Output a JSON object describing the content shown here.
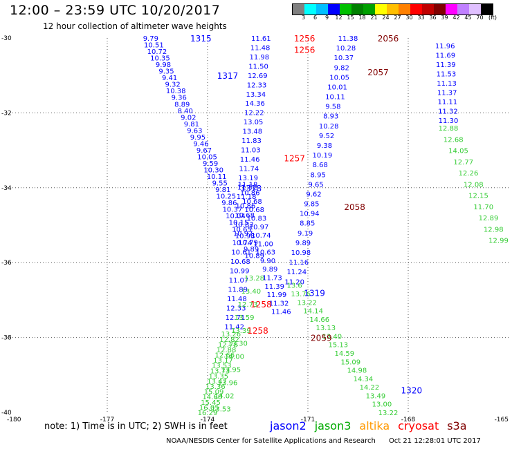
{
  "title": "12:00 – 23:59 UTC 10/20/2017",
  "subtitle": "12 hour collection of altimeter wave heights",
  "colorbar": {
    "unit_label": "(ft)",
    "ticks": [
      "3",
      "6",
      "9",
      "12",
      "15",
      "18",
      "21",
      "24",
      "27",
      "30",
      "33",
      "36",
      "39",
      "42",
      "45",
      "70"
    ],
    "colors": [
      "#808080",
      "#00ffff",
      "#00bfff",
      "#0000ff",
      "#00c000",
      "#008000",
      "#00a000",
      "#ffff00",
      "#ffbf00",
      "#ff8000",
      "#ff0000",
      "#c00000",
      "#800000",
      "#ff00ff",
      "#c080ff",
      "#e0c0ff",
      "#000000"
    ]
  },
  "chart_data": {
    "type": "scatter",
    "title": "12:00 – 23:59 UTC 10/20/2017",
    "subtitle": "12 hour collection of altimeter wave heights",
    "xlim": [
      -180,
      -165
    ],
    "ylim": [
      -40,
      -30
    ],
    "x_ticks": [
      "-180",
      "-177",
      "-174",
      "-171",
      "-168",
      "-165"
    ],
    "y_ticks": [
      "-30",
      "-32",
      "-34",
      "-36",
      "-38",
      "-40"
    ],
    "grid": true,
    "tracks": [
      {
        "satellite": "jason2",
        "color": "#0000ff",
        "start": [
          -175.7,
          -30.0
        ],
        "end": [
          -172.6,
          -35.8
        ],
        "values": [
          "9.79",
          "10.51",
          "10.72",
          "10.35",
          "9.98",
          "9.35",
          "9.41",
          "9.32",
          "10.38",
          "9.36",
          "8.89",
          "8.40",
          "9.02",
          "9.81",
          "9.63",
          "9.95",
          "9.46",
          "9.67",
          "10.05",
          "9.59",
          "10.30",
          "10.11",
          "9.55",
          "9.81",
          "10.25",
          "9.86",
          "10.37",
          "10.04",
          "10.15",
          "10.65",
          "10.98",
          "10.79",
          "9.89",
          "10.89"
        ]
      },
      {
        "satellite": "jason2",
        "color": "#0000ff",
        "start": [
          -172.8,
          -33.9
        ],
        "end": [
          -171.8,
          -37.3
        ],
        "values": [
          "11.18",
          "10.86",
          "10.68",
          "10.68",
          "10.83",
          "10.97",
          "10.74",
          "11.00",
          "10.63",
          "9.90",
          "9.89",
          "11.73",
          "11.39",
          "11.99",
          "11.32",
          "11.46"
        ]
      },
      {
        "satellite": "jason2",
        "color": "#0000ff",
        "start": [
          -172.4,
          -30.0
        ],
        "end": [
          -173.2,
          -37.7
        ],
        "values": [
          "11.61",
          "11.48",
          "11.98",
          "11.50",
          "12.69",
          "12.33",
          "13.34",
          "14.36",
          "12.22",
          "13.05",
          "13.48",
          "11.83",
          "11.03",
          "11.46",
          "11.74",
          "13.19",
          "11.52",
          "11.18",
          "10.86",
          "10.68",
          "10.83",
          "10.97",
          "10.74",
          "10.61",
          "10.68",
          "10.99",
          "11.07",
          "11.89",
          "11.48",
          "12.33",
          "12.71",
          "11.42"
        ]
      },
      {
        "satellite": "jason2",
        "color": "#0000ff",
        "start": [
          -169.8,
          -30.0
        ],
        "end": [
          -171.4,
          -36.5
        ],
        "values": [
          "11.38",
          "10.28",
          "10.37",
          "9.82",
          "10.05",
          "10.01",
          "10.11",
          "9.58",
          "8.93",
          "10.28",
          "9.52",
          "9.38",
          "10.19",
          "8.68",
          "8.95",
          "9.65",
          "9.62",
          "9.85",
          "10.94",
          "8.85",
          "9.19",
          "9.89",
          "10.98",
          "11.16",
          "11.24",
          "11.20"
        ]
      },
      {
        "satellite": "jason2",
        "color": "#0000ff",
        "start": [
          -166.9,
          -30.2
        ],
        "end": [
          -166.8,
          -32.2
        ],
        "values": [
          "11.96",
          "11.69",
          "11.39",
          "11.53",
          "11.13",
          "11.37",
          "11.11",
          "11.32",
          "11.30"
        ]
      },
      {
        "satellite": "jason3",
        "color": "#33cc33",
        "start": [
          -166.8,
          -32.4
        ],
        "end": [
          -165.3,
          -35.4
        ],
        "values": [
          "12.88",
          "12.68",
          "14.05",
          "12.77",
          "12.26",
          "12.08",
          "12.15",
          "11.70",
          "12.89",
          "12.98",
          "12.99"
        ]
      },
      {
        "satellite": "jason3",
        "color": "#33cc33",
        "start": [
          -173.3,
          -37.9
        ],
        "end": [
          -174.0,
          -40.0
        ],
        "values": [
          "13.26",
          "12.82",
          "12.78",
          "12.88",
          "12.66",
          "13.17",
          "13.53",
          "13.73",
          "13.35",
          "13.47",
          "13.36",
          "15.09",
          "14.60",
          "15.45",
          "16.05",
          "16.29"
        ]
      },
      {
        "satellite": "jason3",
        "color": "#33cc33",
        "start": [
          -172.6,
          -36.4
        ],
        "end": [
          -173.6,
          -39.9
        ],
        "values": [
          "13.28",
          "13.40",
          "12.73",
          "13.59",
          "13.39",
          "13.30",
          "14.00",
          "13.95",
          "13.96",
          "14.02",
          "13.53"
        ]
      },
      {
        "satellite": "jason3",
        "color": "#33cc33",
        "start": [
          -171.4,
          -36.6
        ],
        "end": [
          -168.6,
          -40.0
        ],
        "values": [
          "13.6",
          "13.76",
          "13.22",
          "14.14",
          "14.66",
          "13.13",
          "13.40",
          "15.13",
          "14.59",
          "15.09",
          "14.98",
          "14.34",
          "14.22",
          "13.49",
          "13.00",
          "13.22"
        ]
      }
    ],
    "pass_labels": [
      {
        "text": "1315",
        "color": "#0000ff",
        "x": -174.2,
        "y": -30.0
      },
      {
        "text": "1317",
        "color": "#0000ff",
        "x": -173.4,
        "y": -31.0
      },
      {
        "text": "1318",
        "color": "#0000ff",
        "x": -172.7,
        "y": -34.0
      },
      {
        "text": "1319",
        "color": "#0000ff",
        "x": -170.8,
        "y": -36.8
      },
      {
        "text": "1320",
        "color": "#0000ff",
        "x": -167.9,
        "y": -39.4
      },
      {
        "text": "1256",
        "color": "#ff0000",
        "x": -171.1,
        "y": -30.0
      },
      {
        "text": "1256",
        "color": "#ff0000",
        "x": -171.1,
        "y": -30.3
      },
      {
        "text": "1257",
        "color": "#ff0000",
        "x": -171.4,
        "y": -33.2
      },
      {
        "text": "1258",
        "color": "#ff0000",
        "x": -172.4,
        "y": -37.1
      },
      {
        "text": "1258",
        "color": "#ff0000",
        "x": -172.5,
        "y": -37.8
      },
      {
        "text": "2056",
        "color": "#800000",
        "x": -168.6,
        "y": -30.0
      },
      {
        "text": "2057",
        "color": "#800000",
        "x": -168.9,
        "y": -30.9
      },
      {
        "text": "2058",
        "color": "#800000",
        "x": -169.6,
        "y": -34.5
      },
      {
        "text": "2059",
        "color": "#800000",
        "x": -170.6,
        "y": -38.0
      }
    ]
  },
  "note": "note:  1) Time is in UTC;  2) SWH is in feet",
  "legend": [
    {
      "label": "jason2",
      "color": "#0000ff"
    },
    {
      "label": "jason3",
      "color": "#00aa00"
    },
    {
      "label": "altika",
      "color": "#ff9900"
    },
    {
      "label": "cryosat",
      "color": "#ff0000"
    },
    {
      "label": "s3a",
      "color": "#800000"
    }
  ],
  "credit_left": "NOAA/NESDIS Center for Satellite Applications and Research",
  "credit_right": "Oct 21 12:28:01 UTC 2017"
}
